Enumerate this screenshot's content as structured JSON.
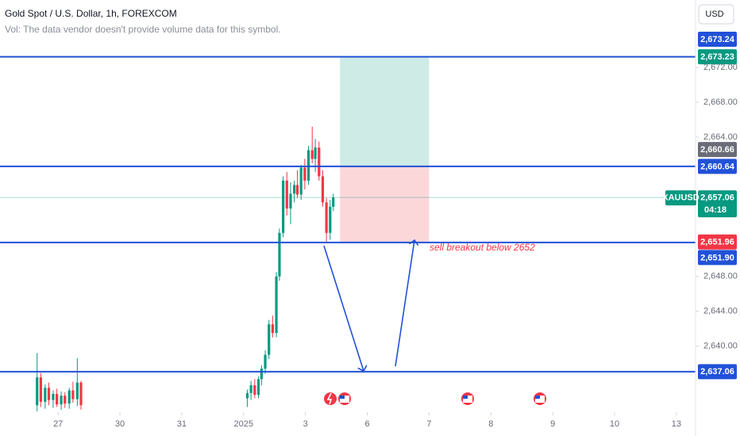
{
  "chart_data": {
    "type": "candlestick",
    "title": "Gold Spot / U.S. Dollar, 1h, FOREXCOM",
    "subtitle": "Vol: The data vendor doesn't provide volume data for this symbol.",
    "currency": "USD",
    "symbol": "XAUUSD",
    "countdown": "04:18",
    "annotation": "sell breakout below 2652",
    "up_color": "#089981",
    "down_color": "#f23645",
    "level_color": "#2151d8",
    "xlim": [
      -0.94,
      10.31
    ],
    "ylim": [
      2632.4,
      2679.75
    ],
    "xticks": [
      {
        "value": 0,
        "label": "27"
      },
      {
        "value": 1,
        "label": "30"
      },
      {
        "value": 2,
        "label": "31"
      },
      {
        "value": 3,
        "label": "2025"
      },
      {
        "value": 4,
        "label": "3"
      },
      {
        "value": 5,
        "label": "6"
      },
      {
        "value": 6,
        "label": "7"
      },
      {
        "value": 7,
        "label": "8"
      },
      {
        "value": 8,
        "label": "9"
      },
      {
        "value": 9,
        "label": "10"
      },
      {
        "value": 10,
        "label": "13"
      }
    ],
    "yticks": [
      {
        "value": 2640,
        "label": "2,640.00"
      },
      {
        "value": 2644,
        "label": "2,644.00"
      },
      {
        "value": 2648,
        "label": "2,648.00"
      },
      {
        "value": 2664,
        "label": "2,664.00"
      },
      {
        "value": 2668,
        "label": "2,668.00"
      },
      {
        "value": 2672,
        "label": "2,672.00"
      }
    ],
    "levels": [
      2673.23,
      2660.64,
      2651.9,
      2637.06
    ],
    "last_price": 2657.06,
    "position": {
      "x_start": 4.56,
      "x_end": 6.0,
      "target": 2673.23,
      "entry": 2660.64,
      "stop": 2651.9
    },
    "price_labels": [
      {
        "value": 2673.24,
        "label": "2,673.24",
        "color": "#2151d8"
      },
      {
        "value": 2673.23,
        "label": "2,673.23",
        "color": "#089981"
      },
      {
        "value": 2660.66,
        "label": "2,660.66",
        "color": "#6a6d78"
      },
      {
        "value": 2660.64,
        "label": "2,660.64",
        "color": "#2151d8"
      },
      {
        "value": 2657.06,
        "label": "2,657.06",
        "color": "#089981"
      },
      {
        "value": 2651.96,
        "label": "2,651.96",
        "color": "#f23645"
      },
      {
        "value": 2651.9,
        "label": "2,651.90",
        "color": "#2151d8"
      },
      {
        "value": 2637.06,
        "label": "2,637.06",
        "color": "#2151d8"
      }
    ],
    "candles": [
      {
        "x": -0.34,
        "open": 2633.2,
        "high": 2639.2,
        "low": 2632.5,
        "close": 2636.4
      },
      {
        "x": -0.28,
        "open": 2636.4,
        "high": 2636.9,
        "low": 2633.0,
        "close": 2633.6
      },
      {
        "x": -0.21,
        "open": 2633.6,
        "high": 2635.6,
        "low": 2632.8,
        "close": 2635.2
      },
      {
        "x": -0.15,
        "open": 2635.2,
        "high": 2635.8,
        "low": 2633.2,
        "close": 2633.8
      },
      {
        "x": -0.08,
        "open": 2633.8,
        "high": 2634.9,
        "low": 2632.9,
        "close": 2634.5
      },
      {
        "x": -0.02,
        "open": 2634.5,
        "high": 2635.1,
        "low": 2633.0,
        "close": 2633.3
      },
      {
        "x": 0.05,
        "open": 2633.3,
        "high": 2634.8,
        "low": 2632.7,
        "close": 2634.3
      },
      {
        "x": 0.11,
        "open": 2634.3,
        "high": 2634.7,
        "low": 2632.9,
        "close": 2633.4
      },
      {
        "x": 0.18,
        "open": 2633.4,
        "high": 2635.2,
        "low": 2632.8,
        "close": 2634.9
      },
      {
        "x": 0.24,
        "open": 2634.9,
        "high": 2635.9,
        "low": 2633.5,
        "close": 2633.9
      },
      {
        "x": 0.31,
        "open": 2633.9,
        "high": 2638.6,
        "low": 2633.1,
        "close": 2635.8
      },
      {
        "x": 0.37,
        "open": 2635.8,
        "high": 2636.0,
        "low": 2632.7,
        "close": 2633.2
      },
      {
        "x": 3.06,
        "open": 2634.0,
        "high": 2635.0,
        "low": 2633.0,
        "close": 2634.6
      },
      {
        "x": 3.12,
        "open": 2634.6,
        "high": 2636.0,
        "low": 2633.8,
        "close": 2635.5
      },
      {
        "x": 3.18,
        "open": 2635.5,
        "high": 2636.2,
        "low": 2634.0,
        "close": 2634.4
      },
      {
        "x": 3.24,
        "open": 2634.4,
        "high": 2636.5,
        "low": 2634.0,
        "close": 2636.2
      },
      {
        "x": 3.29,
        "open": 2636.2,
        "high": 2637.8,
        "low": 2635.5,
        "close": 2637.4
      },
      {
        "x": 3.35,
        "open": 2637.4,
        "high": 2639.5,
        "low": 2636.8,
        "close": 2639.0
      },
      {
        "x": 3.41,
        "open": 2639.0,
        "high": 2643.0,
        "low": 2638.5,
        "close": 2642.5
      },
      {
        "x": 3.47,
        "open": 2642.5,
        "high": 2643.5,
        "low": 2641.0,
        "close": 2641.5
      },
      {
        "x": 3.53,
        "open": 2641.5,
        "high": 2648.5,
        "low": 2641.0,
        "close": 2648.0
      },
      {
        "x": 3.58,
        "open": 2648.0,
        "high": 2653.5,
        "low": 2647.5,
        "close": 2653.0
      },
      {
        "x": 3.64,
        "open": 2653.0,
        "high": 2659.5,
        "low": 2652.5,
        "close": 2659.0
      },
      {
        "x": 3.7,
        "open": 2659.0,
        "high": 2660.0,
        "low": 2655.0,
        "close": 2655.8
      },
      {
        "x": 3.76,
        "open": 2655.8,
        "high": 2658.8,
        "low": 2654.0,
        "close": 2657.5
      },
      {
        "x": 3.82,
        "open": 2657.5,
        "high": 2659.0,
        "low": 2656.5,
        "close": 2658.5
      },
      {
        "x": 3.87,
        "open": 2658.5,
        "high": 2660.2,
        "low": 2657.0,
        "close": 2657.4
      },
      {
        "x": 3.93,
        "open": 2657.4,
        "high": 2660.8,
        "low": 2656.8,
        "close": 2660.5
      },
      {
        "x": 3.99,
        "open": 2660.5,
        "high": 2661.5,
        "low": 2658.0,
        "close": 2659.0
      },
      {
        "x": 4.05,
        "open": 2659.0,
        "high": 2663.0,
        "low": 2658.5,
        "close": 2662.5
      },
      {
        "x": 4.11,
        "open": 2662.5,
        "high": 2665.2,
        "low": 2661.0,
        "close": 2661.5
      },
      {
        "x": 4.16,
        "open": 2661.5,
        "high": 2663.8,
        "low": 2660.0,
        "close": 2662.8
      },
      {
        "x": 4.22,
        "open": 2662.8,
        "high": 2663.5,
        "low": 2659.0,
        "close": 2659.5
      },
      {
        "x": 4.28,
        "open": 2659.5,
        "high": 2660.2,
        "low": 2656.0,
        "close": 2656.5
      },
      {
        "x": 4.34,
        "open": 2656.5,
        "high": 2657.0,
        "low": 2652.0,
        "close": 2653.0
      },
      {
        "x": 4.4,
        "open": 2653.0,
        "high": 2656.8,
        "low": 2652.2,
        "close": 2656.0
      },
      {
        "x": 4.45,
        "open": 2656.0,
        "high": 2657.5,
        "low": 2655.5,
        "close": 2657.06
      }
    ]
  }
}
